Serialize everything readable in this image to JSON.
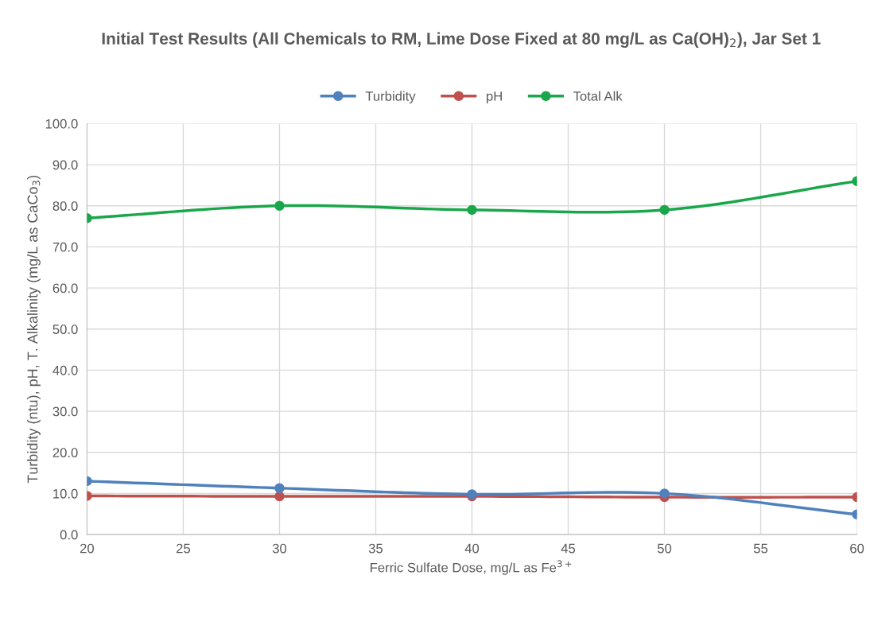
{
  "chart_data": {
    "type": "line",
    "title": "Initial Test Results (All Chemicals to RM, Lime Dose Fixed at 80 mg/L as Ca(OH)$_{2}$), Jar Set 1",
    "xlabel": "Ferric Sulfate Dose, mg/L as Fe$^{3+}$",
    "ylabel": "Turbidity (ntu), pH, T. Alkalinity (mg/L as CaCo$_{3}$)",
    "x": [
      20,
      30,
      40,
      50,
      60
    ],
    "series": [
      {
        "name": "Turbidity",
        "color": "#4f81bd",
        "values": [
          13.0,
          11.3,
          9.8,
          10.0,
          4.9
        ]
      },
      {
        "name": "pH",
        "color": "#c0504d",
        "values": [
          9.4,
          9.3,
          9.3,
          9.1,
          9.1
        ]
      },
      {
        "name": "Total Alk",
        "color": "#1aa64a",
        "values": [
          77,
          80,
          79,
          79,
          86
        ]
      }
    ],
    "xlim": [
      20,
      60
    ],
    "xticks": [
      20,
      25,
      30,
      35,
      40,
      45,
      50,
      55,
      60
    ],
    "ylim": [
      0,
      100
    ],
    "yticks": [
      {
        "value": 0,
        "label": "0.0"
      },
      {
        "value": 10,
        "label": "10.0"
      },
      {
        "value": 20,
        "label": "20.0"
      },
      {
        "value": 30,
        "label": "30.0"
      },
      {
        "value": 40,
        "label": "40.0"
      },
      {
        "value": 50,
        "label": "50.0"
      },
      {
        "value": 60,
        "label": "60.0"
      },
      {
        "value": 70,
        "label": "70.0"
      },
      {
        "value": 80,
        "label": "80.0"
      },
      {
        "value": 90,
        "label": "90.0"
      },
      {
        "value": 100,
        "label": "100.0"
      }
    ],
    "grid": true,
    "legend": "top",
    "marker": "circle",
    "line_style": "solid"
  }
}
